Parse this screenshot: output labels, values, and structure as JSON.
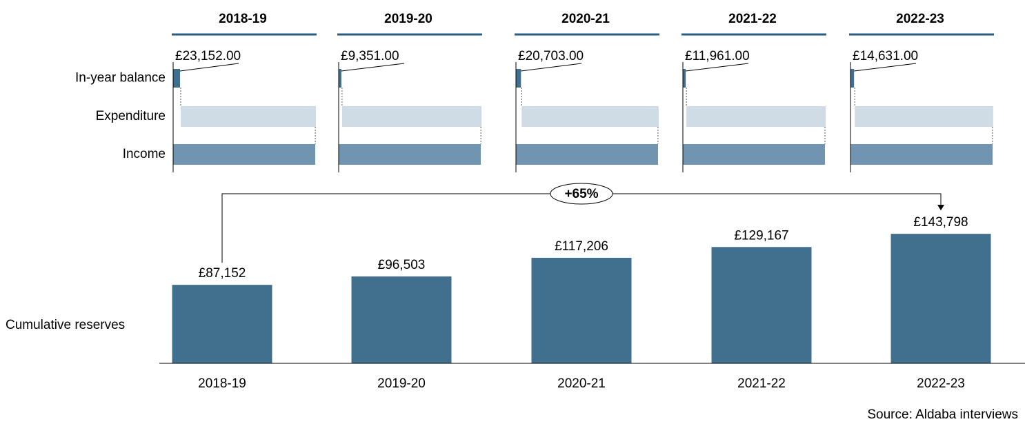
{
  "chart_data": [
    {
      "type": "waterfall",
      "orientation": "horizontal",
      "categories": [
        "In-year balance",
        "Expenditure",
        "Income"
      ],
      "colors": [
        "#41708f",
        "#d0dce5",
        "#7195b0"
      ],
      "panels": [
        {
          "title": "2018-19",
          "values": [
            23152,
            454000,
            477000
          ],
          "value_labels": [
            "£23,152.00",
            null,
            null
          ],
          "xlim": [
            0,
            477000
          ]
        },
        {
          "title": "2019-20",
          "values": [
            9351,
            484000,
            493000
          ],
          "value_labels": [
            "£9,351.00",
            null,
            null
          ],
          "xlim": [
            0,
            493000
          ]
        },
        {
          "title": "2020-21",
          "values": [
            20703,
            564000,
            585000
          ],
          "value_labels": [
            "£20,703.00",
            null,
            null
          ],
          "xlim": [
            0,
            585000
          ]
        },
        {
          "title": "2021-22",
          "values": [
            11961,
            583000,
            595000
          ],
          "value_labels": [
            "£11,961.00",
            null,
            null
          ],
          "xlim": [
            0,
            595000
          ]
        },
        {
          "title": "2022-23",
          "values": [
            14631,
            567000,
            582000
          ],
          "value_labels": [
            "£14,631.00",
            null,
            null
          ],
          "xlim": [
            0,
            582000
          ]
        }
      ]
    },
    {
      "type": "bar",
      "row_label": "Cumulative reserves",
      "categories": [
        "2018-19",
        "2019-20",
        "2020-21",
        "2021-22",
        "2022-23"
      ],
      "values": [
        87152,
        96503,
        117206,
        129167,
        143798
      ],
      "value_labels": [
        "£87,152",
        "£96,503",
        "£117,206",
        "£129,167",
        "£143,798"
      ],
      "color": "#41708f",
      "ylim": [
        0,
        160000
      ],
      "annotation": "+65%",
      "source": "Source: Aldaba interviews"
    }
  ]
}
